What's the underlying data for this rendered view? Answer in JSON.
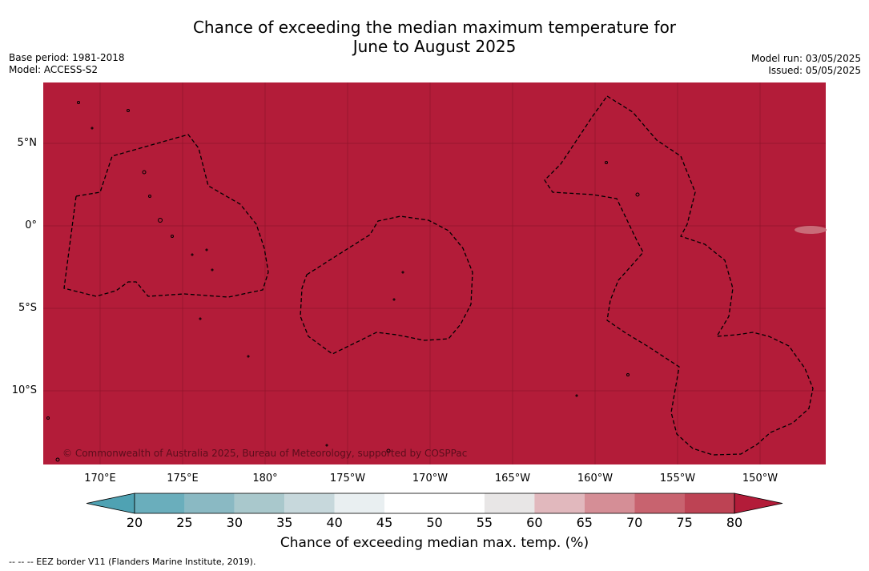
{
  "title_line1": "Chance of exceeding the median maximum temperature for",
  "title_line2": "June to August 2025",
  "meta_left": {
    "base_period": "Base period: 1981-2018",
    "model": "Model: ACCESS-S2"
  },
  "meta_right": {
    "model_run": "Model run: 03/05/2025",
    "issued": "Issued: 05/05/2025"
  },
  "map": {
    "fill_color": "#b31c39",
    "grid_color": "#7a1022",
    "lat_labels": [
      "5°N",
      "0°",
      "5°S",
      "10°S"
    ],
    "lon_labels": [
      "170°E",
      "175°E",
      "180°",
      "175°W",
      "170°W",
      "165°W",
      "160°W",
      "155°W",
      "150°W"
    ],
    "copyright": "© Commonwealth of Australia 2025, Bureau of Meteorology, supported by COSPPac"
  },
  "colorbar": {
    "ticks": [
      "20",
      "25",
      "30",
      "35",
      "40",
      "45",
      "50",
      "55",
      "60",
      "65",
      "70",
      "75",
      "80"
    ],
    "colors": [
      "#6aaebc",
      "#8ab9c3",
      "#a9c8cc",
      "#c7d8dc",
      "#e9eff1",
      "#ffffff",
      "#ffffff",
      "#e8e6e6",
      "#e1b8bd",
      "#d58e96",
      "#c8636f",
      "#bd4354"
    ],
    "low_extend_color": "#4fa2b3",
    "high_extend_color": "#b31c39",
    "label": "Chance of exceeding median max. temp. (%)"
  },
  "footnote": "--  --  -- EEZ border V11 (Flanders Marine Institute, 2019)."
}
